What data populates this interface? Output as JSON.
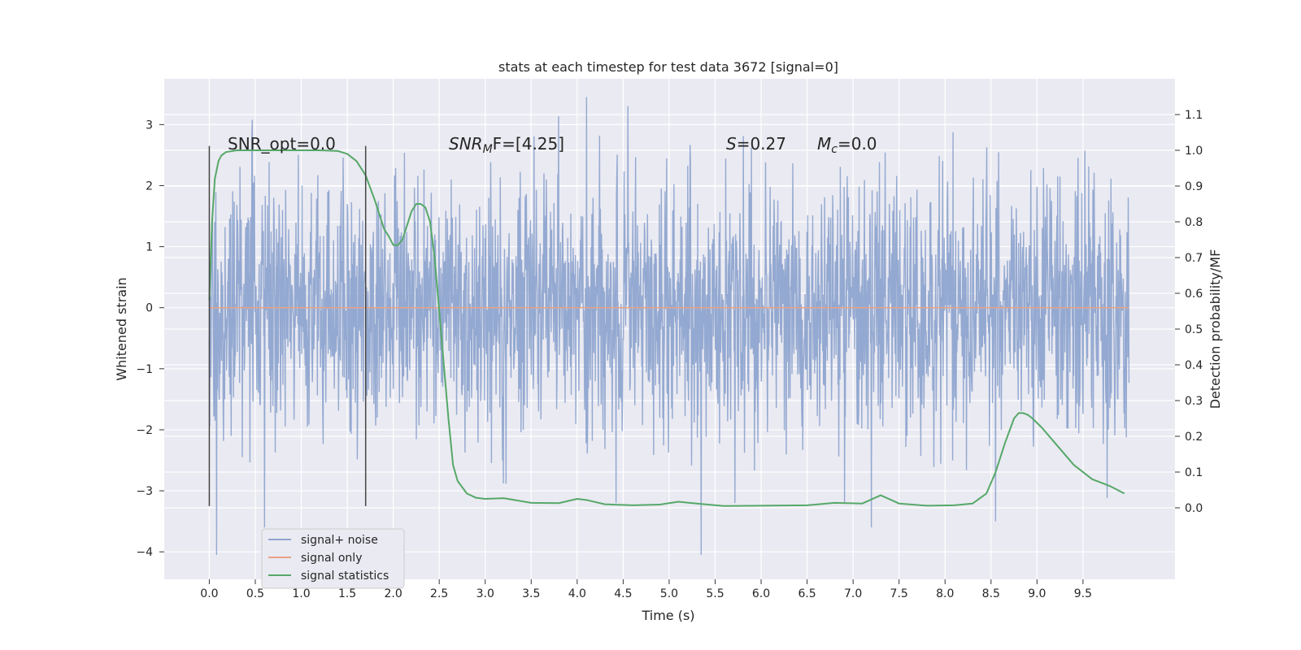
{
  "chart_data": {
    "type": "line",
    "title": "stats at each timestep for test data 3672 [signal=0]",
    "xlabel": "Time (s)",
    "ylabel_left": "Whitened strain",
    "ylabel_right": "Detection probability/MF",
    "xlim": [
      -0.49,
      10.5
    ],
    "ylim_left": [
      -4.45,
      3.75
    ],
    "ylim_right": [
      -0.2,
      1.2
    ],
    "x_ticks": [
      "0.0",
      "0.5",
      "1.0",
      "1.5",
      "2.0",
      "2.5",
      "3.0",
      "3.5",
      "4.0",
      "4.5",
      "5.0",
      "5.5",
      "6.0",
      "6.5",
      "7.0",
      "7.5",
      "8.0",
      "8.5",
      "9.0",
      "9.5"
    ],
    "x_tick_values": [
      0,
      0.5,
      1,
      1.5,
      2,
      2.5,
      3,
      3.5,
      4,
      4.5,
      5,
      5.5,
      6,
      6.5,
      7,
      7.5,
      8,
      8.5,
      9,
      9.5
    ],
    "y_ticks_left": [
      "3",
      "2",
      "1",
      "0",
      "−1",
      "−2",
      "−3",
      "−4"
    ],
    "y_tick_values_left": [
      3,
      2,
      1,
      0,
      -1,
      -2,
      -3,
      -4
    ],
    "y_ticks_right": [
      "1.1",
      "1.0",
      "0.9",
      "0.8",
      "0.7",
      "0.6",
      "0.5",
      "0.4",
      "0.3",
      "0.2",
      "0.1",
      "0.0"
    ],
    "y_tick_values_right": [
      1.1,
      1.0,
      0.9,
      0.8,
      0.7,
      0.6,
      0.5,
      0.4,
      0.3,
      0.2,
      0.1,
      0.0
    ],
    "grid": true,
    "legend_position": "bottom-left",
    "legend": [
      "signal+ noise",
      "signal only",
      "signal statistics"
    ],
    "annotations": {
      "snr_opt": "SNR_opt=0.0",
      "snr_mf_prefix": "SNR",
      "snr_mf_sub": "M",
      "snr_mf_suffix": "F=[4.25]",
      "s_prefix": "S",
      "s_value": "=0.27",
      "mc_prefix": "M",
      "mc_sub": "c",
      "mc_value": "=0.0"
    },
    "vertical_lines": [
      {
        "x": 0.0,
        "y_top": 2.65,
        "y_bottom": -3.25
      },
      {
        "x": 1.7,
        "y_top": 2.65,
        "y_bottom": -3.25
      }
    ],
    "series": [
      {
        "name": "signal+ noise",
        "color": "#8fa5cf",
        "x_range": [
          0,
          10
        ],
        "samples": 2400,
        "noise_sigma": 1.0,
        "notable_spikes": [
          [
            0.08,
            -4.05
          ],
          [
            0.6,
            -3.6
          ],
          [
            4.1,
            3.45
          ],
          [
            4.55,
            3.3
          ],
          [
            5.35,
            -4.05
          ],
          [
            7.2,
            -3.6
          ],
          [
            8.55,
            -3.5
          ]
        ]
      },
      {
        "name": "signal only",
        "color": "#e8a285",
        "x": [
          0,
          10
        ],
        "y": [
          0,
          0
        ]
      },
      {
        "name": "signal statistics",
        "color": "#56a868",
        "x": [
          0.0,
          0.03,
          0.06,
          0.1,
          0.13,
          0.18,
          0.3,
          0.5,
          0.8,
          1.0,
          1.2,
          1.4,
          1.5,
          1.6,
          1.7,
          1.8,
          1.85,
          1.9,
          1.95,
          2.0,
          2.05,
          2.1,
          2.15,
          2.2,
          2.25,
          2.3,
          2.35,
          2.4,
          2.45,
          2.5,
          2.55,
          2.6,
          2.65,
          2.7,
          2.8,
          2.9,
          3.0,
          3.2,
          3.5,
          3.8,
          4.0,
          4.1,
          4.3,
          4.6,
          4.9,
          5.1,
          5.3,
          5.6,
          6.0,
          6.5,
          6.8,
          7.1,
          7.3,
          7.5,
          7.8,
          8.1,
          8.3,
          8.45,
          8.55,
          8.65,
          8.75,
          8.8,
          8.85,
          8.9,
          8.95,
          9.05,
          9.2,
          9.4,
          9.6,
          9.8,
          9.95
        ],
        "y": [
          0.58,
          0.8,
          0.92,
          0.97,
          0.985,
          0.995,
          1.0,
          1.0,
          1.0,
          1.0,
          1.0,
          0.998,
          0.99,
          0.97,
          0.93,
          0.86,
          0.82,
          0.78,
          0.76,
          0.735,
          0.735,
          0.75,
          0.79,
          0.83,
          0.85,
          0.85,
          0.84,
          0.8,
          0.7,
          0.55,
          0.4,
          0.25,
          0.12,
          0.075,
          0.04,
          0.028,
          0.025,
          0.027,
          0.014,
          0.013,
          0.025,
          0.022,
          0.01,
          0.007,
          0.009,
          0.017,
          0.012,
          0.005,
          0.006,
          0.007,
          0.014,
          0.012,
          0.035,
          0.012,
          0.006,
          0.007,
          0.012,
          0.04,
          0.1,
          0.18,
          0.25,
          0.265,
          0.265,
          0.26,
          0.25,
          0.225,
          0.18,
          0.12,
          0.08,
          0.06,
          0.04
        ]
      }
    ]
  }
}
